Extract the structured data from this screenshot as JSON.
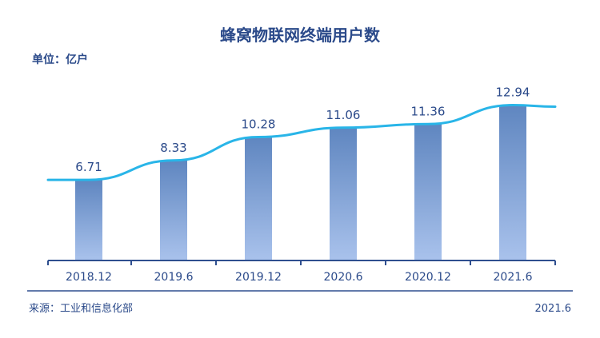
{
  "chart_data": {
    "type": "bar",
    "title": "蜂窝物联网终端用户数",
    "unit_label": "单位：亿户",
    "categories": [
      "2018.12",
      "2019.6",
      "2019.12",
      "2020.6",
      "2020.12",
      "2021.6"
    ],
    "values": [
      6.71,
      8.33,
      10.28,
      11.06,
      11.36,
      12.94
    ],
    "trend_line": true,
    "ylim": [
      0,
      14
    ],
    "grid": false,
    "bar_color_top": "#5f86c0",
    "bar_color_bottom": "#a9c2ec",
    "line_color": "#29b5e8",
    "axis_color": "#2f4f8f"
  },
  "footer": {
    "source": "来源：工业和信息化部",
    "date": "2021.6"
  }
}
